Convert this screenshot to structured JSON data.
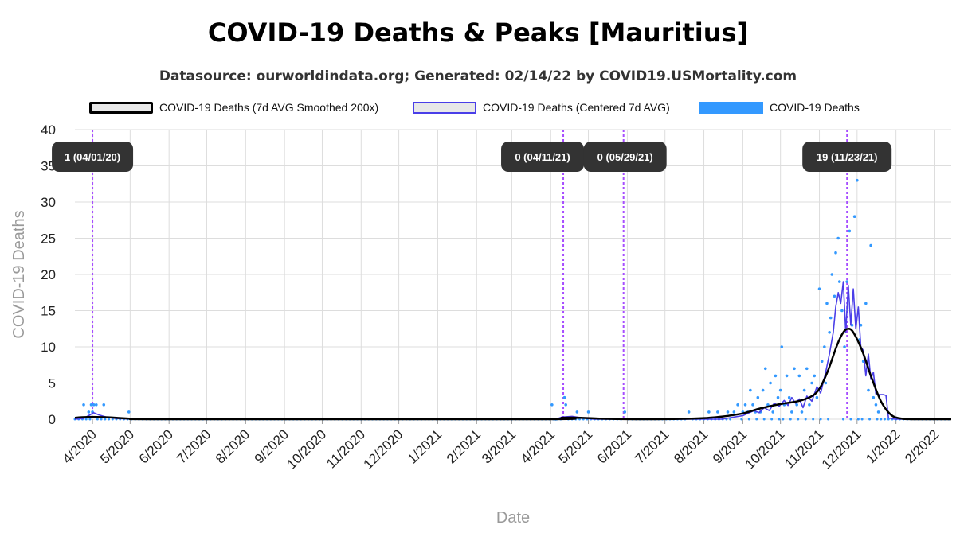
{
  "title": "COVID-19 Deaths & Peaks [Mauritius]",
  "subtitle": "Datasource: ourworldindata.org; Generated: 02/14/22 by COVID19.USMortality.com",
  "legend": [
    {
      "label": "COVID-19 Deaths (7d AVG Smoothed 200x)",
      "style": "smoothed"
    },
    {
      "label": "COVID-19 Deaths (Centered 7d AVG)",
      "style": "centered"
    },
    {
      "label": "COVID-19 Deaths",
      "style": "raw"
    }
  ],
  "colors": {
    "smoothed": "#000000",
    "centered": "#4a3ee8",
    "raw": "#3399ff",
    "peak_line": "#a64dff",
    "annotation_bg": "#333333",
    "grid": "#dddddd"
  },
  "chart_data": {
    "type": "line",
    "xlabel": "Date",
    "ylabel": "COVID-19 Deaths",
    "ylim": [
      0,
      40
    ],
    "yticks": [
      0,
      5,
      10,
      15,
      20,
      25,
      30,
      35,
      40
    ],
    "xlim": [
      "2020-03-18",
      "2022-02-14"
    ],
    "xticks": [
      {
        "date": "2020-04-01",
        "label": "4/2020"
      },
      {
        "date": "2020-05-01",
        "label": "5/2020"
      },
      {
        "date": "2020-06-01",
        "label": "6/2020"
      },
      {
        "date": "2020-07-01",
        "label": "7/2020"
      },
      {
        "date": "2020-08-01",
        "label": "8/2020"
      },
      {
        "date": "2020-09-01",
        "label": "9/2020"
      },
      {
        "date": "2020-10-01",
        "label": "10/2020"
      },
      {
        "date": "2020-11-01",
        "label": "11/2020"
      },
      {
        "date": "2020-12-01",
        "label": "12/2020"
      },
      {
        "date": "2021-01-01",
        "label": "1/2021"
      },
      {
        "date": "2021-02-01",
        "label": "2/2021"
      },
      {
        "date": "2021-03-01",
        "label": "3/2021"
      },
      {
        "date": "2021-04-01",
        "label": "4/2021"
      },
      {
        "date": "2021-05-01",
        "label": "5/2021"
      },
      {
        "date": "2021-06-01",
        "label": "6/2021"
      },
      {
        "date": "2021-07-01",
        "label": "7/2021"
      },
      {
        "date": "2021-08-01",
        "label": "8/2021"
      },
      {
        "date": "2021-09-01",
        "label": "9/2021"
      },
      {
        "date": "2021-10-01",
        "label": "10/2021"
      },
      {
        "date": "2021-11-01",
        "label": "11/2021"
      },
      {
        "date": "2021-12-01",
        "label": "12/2021"
      },
      {
        "date": "2022-01-01",
        "label": "1/2022"
      },
      {
        "date": "2022-02-01",
        "label": "2/2022"
      }
    ],
    "grid": true,
    "legend_position": "top",
    "peaks": [
      {
        "date": "2020-04-01",
        "label": "1 (04/01/20)"
      },
      {
        "date": "2021-04-11",
        "label": "0 (04/11/21)"
      },
      {
        "date": "2021-05-29",
        "label": "0 (05/29/21)"
      },
      {
        "date": "2021-11-23",
        "label": "19 (11/23/21)"
      }
    ],
    "series": [
      {
        "name": "COVID-19 Deaths (7d AVG Smoothed 200x)",
        "style": "smoothed",
        "points": [
          [
            "2020-03-18",
            0.2
          ],
          [
            "2020-03-28",
            0.3
          ],
          [
            "2020-04-05",
            0.3
          ],
          [
            "2020-04-20",
            0.2
          ],
          [
            "2020-05-05",
            0.05
          ],
          [
            "2020-06-01",
            0
          ],
          [
            "2021-03-25",
            0
          ],
          [
            "2021-04-10",
            0.2
          ],
          [
            "2021-04-25",
            0.2
          ],
          [
            "2021-05-15",
            0.05
          ],
          [
            "2021-06-15",
            0
          ],
          [
            "2021-07-15",
            0.05
          ],
          [
            "2021-08-01",
            0.15
          ],
          [
            "2021-08-15",
            0.35
          ],
          [
            "2021-09-01",
            0.8
          ],
          [
            "2021-09-15",
            1.5
          ],
          [
            "2021-10-01",
            2.1
          ],
          [
            "2021-10-15",
            2.5
          ],
          [
            "2021-10-25",
            3.1
          ],
          [
            "2021-11-01",
            4.2
          ],
          [
            "2021-11-08",
            6.8
          ],
          [
            "2021-11-15",
            10.2
          ],
          [
            "2021-11-20",
            12.0
          ],
          [
            "2021-11-24",
            12.5
          ],
          [
            "2021-11-28",
            12.0
          ],
          [
            "2021-12-05",
            9.5
          ],
          [
            "2021-12-12",
            6.0
          ],
          [
            "2021-12-20",
            2.5
          ],
          [
            "2021-12-28",
            0.6
          ],
          [
            "2022-01-05",
            0.1
          ],
          [
            "2022-01-15",
            0
          ],
          [
            "2022-02-14",
            0
          ]
        ]
      },
      {
        "name": "COVID-19 Deaths (Centered 7d AVG)",
        "style": "centered",
        "points": [
          [
            "2020-03-18",
            0
          ],
          [
            "2020-03-25",
            0.1
          ],
          [
            "2020-03-30",
            0.6
          ],
          [
            "2020-04-02",
            0.9
          ],
          [
            "2020-04-06",
            0.6
          ],
          [
            "2020-04-12",
            0.3
          ],
          [
            "2020-04-20",
            0.1
          ],
          [
            "2020-05-05",
            0
          ],
          [
            "2021-04-05",
            0
          ],
          [
            "2021-04-10",
            0.3
          ],
          [
            "2021-04-18",
            0.4
          ],
          [
            "2021-04-25",
            0.2
          ],
          [
            "2021-05-05",
            0
          ],
          [
            "2021-08-15",
            0
          ],
          [
            "2021-08-25",
            0.3
          ],
          [
            "2021-09-01",
            0.5
          ],
          [
            "2021-09-05",
            0.8
          ],
          [
            "2021-09-10",
            1.2
          ],
          [
            "2021-09-14",
            0.9
          ],
          [
            "2021-09-18",
            1.6
          ],
          [
            "2021-09-22",
            1.2
          ],
          [
            "2021-09-26",
            2.2
          ],
          [
            "2021-09-30",
            1.8
          ],
          [
            "2021-10-04",
            2.6
          ],
          [
            "2021-10-07",
            1.9
          ],
          [
            "2021-10-10",
            3.0
          ],
          [
            "2021-10-13",
            2.2
          ],
          [
            "2021-10-16",
            2.8
          ],
          [
            "2021-10-19",
            1.6
          ],
          [
            "2021-10-22",
            3.2
          ],
          [
            "2021-10-26",
            2.5
          ],
          [
            "2021-10-30",
            4.5
          ],
          [
            "2021-11-02",
            3.6
          ],
          [
            "2021-11-06",
            6.5
          ],
          [
            "2021-11-09",
            9.0
          ],
          [
            "2021-11-12",
            12.0
          ],
          [
            "2021-11-14",
            15.5
          ],
          [
            "2021-11-16",
            17.5
          ],
          [
            "2021-11-18",
            16.0
          ],
          [
            "2021-11-20",
            19.0
          ],
          [
            "2021-11-22",
            12.0
          ],
          [
            "2021-11-24",
            18.5
          ],
          [
            "2021-11-26",
            13.0
          ],
          [
            "2021-11-28",
            18.0
          ],
          [
            "2021-11-30",
            12.5
          ],
          [
            "2021-12-02",
            15.5
          ],
          [
            "2021-12-04",
            10.0
          ],
          [
            "2021-12-06",
            9.5
          ],
          [
            "2021-12-08",
            6.0
          ],
          [
            "2021-12-10",
            9.0
          ],
          [
            "2021-12-12",
            5.5
          ],
          [
            "2021-12-14",
            6.5
          ],
          [
            "2021-12-16",
            3.5
          ],
          [
            "2021-12-18",
            3.4
          ],
          [
            "2021-12-22",
            3.4
          ],
          [
            "2021-12-24",
            3.3
          ],
          [
            "2021-12-26",
            0.2
          ],
          [
            "2021-12-31",
            0
          ],
          [
            "2022-02-14",
            0
          ]
        ]
      },
      {
        "name": "COVID-19 Deaths",
        "style": "raw",
        "points": [
          [
            "2020-03-25",
            2
          ],
          [
            "2020-03-29",
            1
          ],
          [
            "2020-03-31",
            2
          ],
          [
            "2020-04-01",
            1
          ],
          [
            "2020-04-02",
            2
          ],
          [
            "2020-04-04",
            2
          ],
          [
            "2020-04-10",
            2
          ],
          [
            "2020-04-30",
            1
          ],
          [
            "2021-04-02",
            2
          ],
          [
            "2021-04-05",
            0
          ],
          [
            "2021-04-12",
            3
          ],
          [
            "2021-04-13",
            2
          ],
          [
            "2021-04-22",
            1
          ],
          [
            "2021-05-01",
            1
          ],
          [
            "2021-05-30",
            1
          ],
          [
            "2021-07-20",
            1
          ],
          [
            "2021-08-05",
            1
          ],
          [
            "2021-08-12",
            1
          ],
          [
            "2021-08-20",
            1
          ],
          [
            "2021-08-25",
            1
          ],
          [
            "2021-08-28",
            2
          ],
          [
            "2021-09-01",
            1
          ],
          [
            "2021-09-03",
            2
          ],
          [
            "2021-09-05",
            1
          ],
          [
            "2021-09-07",
            4
          ],
          [
            "2021-09-09",
            2
          ],
          [
            "2021-09-11",
            1
          ],
          [
            "2021-09-13",
            3
          ],
          [
            "2021-09-15",
            1
          ],
          [
            "2021-09-17",
            4
          ],
          [
            "2021-09-19",
            7
          ],
          [
            "2021-09-21",
            2
          ],
          [
            "2021-09-23",
            5
          ],
          [
            "2021-09-25",
            1
          ],
          [
            "2021-09-27",
            6
          ],
          [
            "2021-09-29",
            3
          ],
          [
            "2021-10-01",
            4
          ],
          [
            "2021-10-02",
            10
          ],
          [
            "2021-10-04",
            2
          ],
          [
            "2021-10-06",
            6
          ],
          [
            "2021-10-08",
            3
          ],
          [
            "2021-10-10",
            1
          ],
          [
            "2021-10-12",
            7
          ],
          [
            "2021-10-14",
            2
          ],
          [
            "2021-10-16",
            6
          ],
          [
            "2021-10-18",
            1
          ],
          [
            "2021-10-20",
            4
          ],
          [
            "2021-10-22",
            7
          ],
          [
            "2021-10-24",
            2
          ],
          [
            "2021-10-26",
            5
          ],
          [
            "2021-10-28",
            6
          ],
          [
            "2021-10-30",
            3
          ],
          [
            "2021-11-01",
            18
          ],
          [
            "2021-11-03",
            8
          ],
          [
            "2021-11-05",
            10
          ],
          [
            "2021-11-06",
            5
          ],
          [
            "2021-11-07",
            16
          ],
          [
            "2021-11-09",
            12
          ],
          [
            "2021-11-10",
            14
          ],
          [
            "2021-11-11",
            20
          ],
          [
            "2021-11-13",
            17
          ],
          [
            "2021-11-14",
            23
          ],
          [
            "2021-11-16",
            25
          ],
          [
            "2021-11-17",
            19
          ],
          [
            "2021-11-19",
            15
          ],
          [
            "2021-11-21",
            10
          ],
          [
            "2021-11-23",
            19
          ],
          [
            "2021-11-25",
            26
          ],
          [
            "2021-11-27",
            13
          ],
          [
            "2021-11-29",
            28
          ],
          [
            "2021-12-01",
            33
          ],
          [
            "2021-12-03",
            11
          ],
          [
            "2021-12-04",
            13
          ],
          [
            "2021-12-06",
            8
          ],
          [
            "2021-12-08",
            16
          ],
          [
            "2021-12-10",
            4
          ],
          [
            "2021-12-12",
            24
          ],
          [
            "2021-12-14",
            3
          ],
          [
            "2021-12-16",
            2
          ],
          [
            "2021-12-18",
            1
          ]
        ]
      }
    ]
  }
}
